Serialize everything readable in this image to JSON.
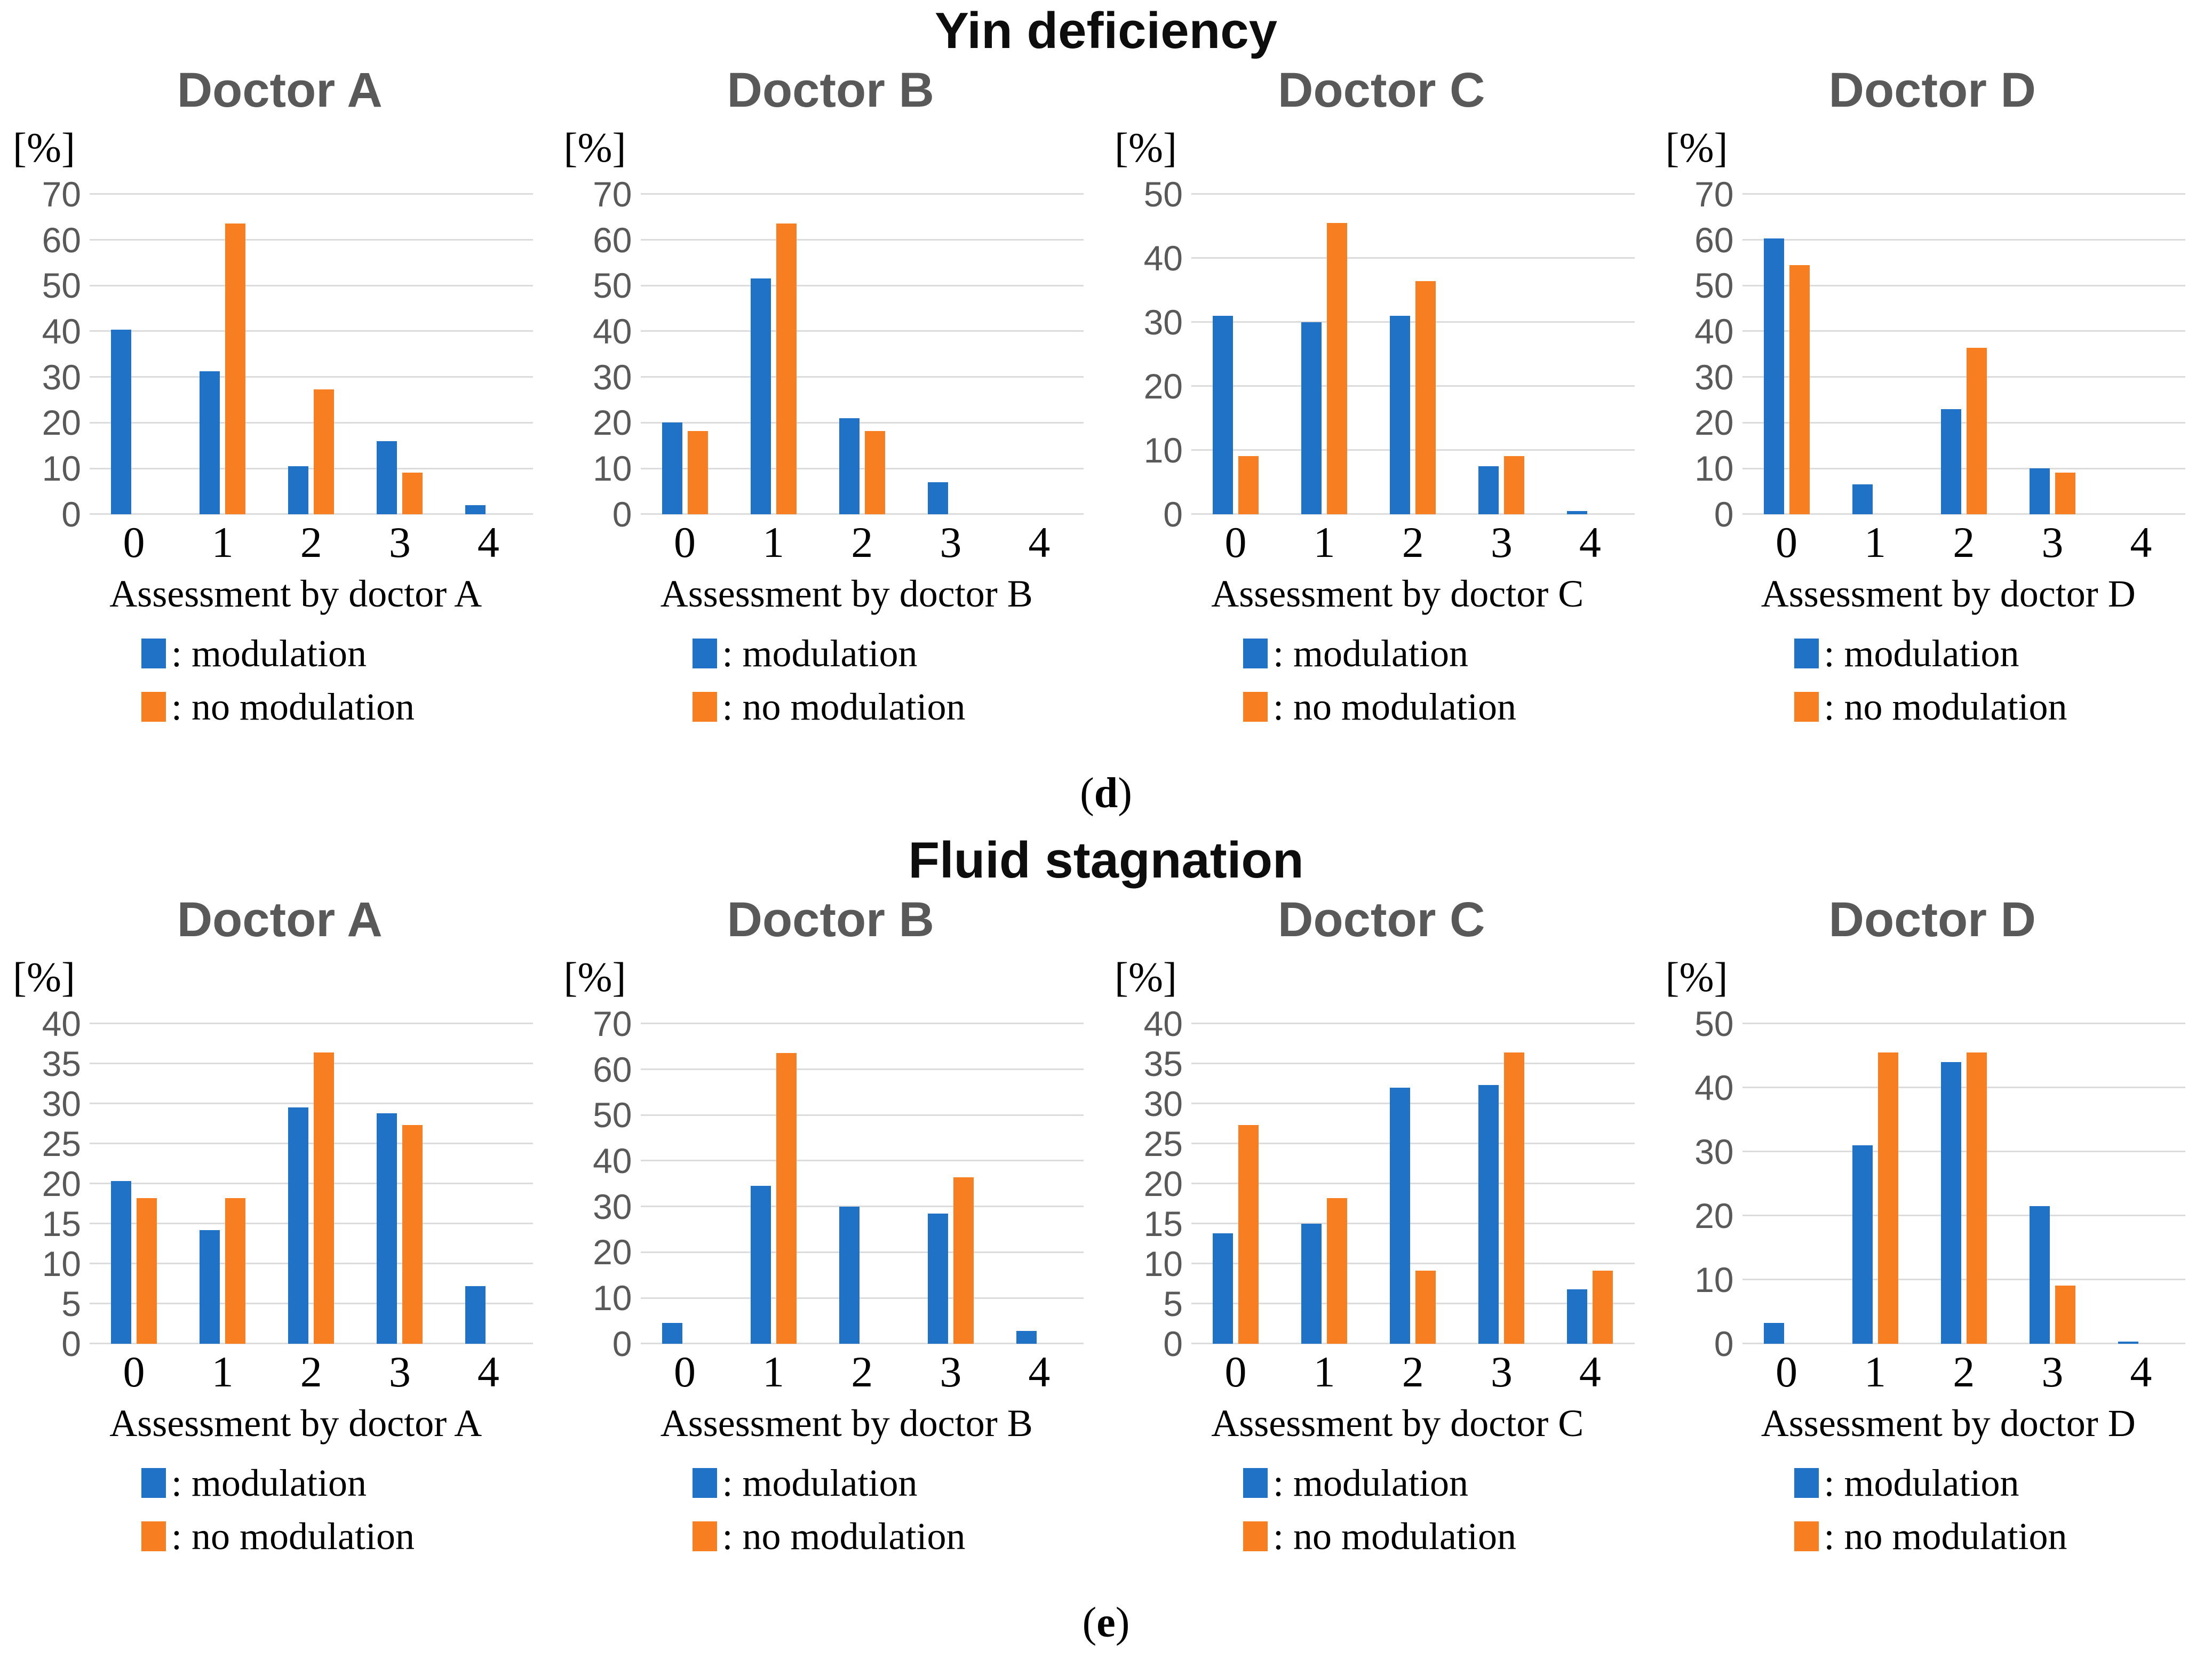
{
  "figure": {
    "percent_label": "[%]",
    "colors": {
      "modulation": "#1F72C6",
      "no_modulation": "#F87E22",
      "gridline": "#DCDCDC",
      "tick_label": "#595959",
      "panel_title": "#595959"
    },
    "legend": [
      {
        "key": "modulation",
        "label": ": modulation"
      },
      {
        "key": "no_modulation",
        "label": ": no modulation"
      }
    ],
    "sections": [
      {
        "id": "d",
        "title": "Yin deficiency",
        "caption": {
          "open": "(",
          "letter": "d",
          "close": ")"
        }
      },
      {
        "id": "e",
        "title": "Fluid stagnation",
        "caption": {
          "open": "(",
          "letter": "e",
          "close": ")"
        }
      }
    ]
  },
  "chart_data": [
    {
      "type": "bar",
      "section_index": 0,
      "section": "Yin deficiency",
      "title": "Doctor A",
      "xlabel": "Assessment by doctor A",
      "ylabel": "[%]",
      "categories": [
        "0",
        "1",
        "2",
        "3",
        "4"
      ],
      "ylim": [
        0,
        70
      ],
      "ytick_step": 10,
      "series": [
        {
          "name": "modulation",
          "values": [
            40.3,
            31.2,
            10.5,
            16.0,
            2.0
          ]
        },
        {
          "name": "no modulation",
          "values": [
            0,
            63.6,
            27.3,
            9.1,
            0
          ]
        }
      ]
    },
    {
      "type": "bar",
      "section_index": 0,
      "section": "Yin deficiency",
      "title": "Doctor B",
      "xlabel": "Assessment by doctor B",
      "ylabel": "[%]",
      "categories": [
        "0",
        "1",
        "2",
        "3",
        "4"
      ],
      "ylim": [
        0,
        70
      ],
      "ytick_step": 10,
      "series": [
        {
          "name": "modulation",
          "values": [
            20.0,
            51.5,
            21.0,
            7.0,
            0
          ]
        },
        {
          "name": "no modulation",
          "values": [
            18.2,
            63.6,
            18.2,
            0,
            0
          ]
        }
      ]
    },
    {
      "type": "bar",
      "section_index": 0,
      "section": "Yin deficiency",
      "title": "Doctor C",
      "xlabel": "Assessment by doctor C",
      "ylabel": "[%]",
      "categories": [
        "0",
        "1",
        "2",
        "3",
        "4"
      ],
      "ylim": [
        0,
        50
      ],
      "ytick_step": 10,
      "series": [
        {
          "name": "modulation",
          "values": [
            31.0,
            30.0,
            31.0,
            7.5,
            0.5
          ]
        },
        {
          "name": "no modulation",
          "values": [
            9.1,
            45.5,
            36.4,
            9.1,
            0
          ]
        }
      ]
    },
    {
      "type": "bar",
      "section_index": 0,
      "section": "Yin deficiency",
      "title": "Doctor D",
      "xlabel": "Assessment by doctor D",
      "ylabel": "[%]",
      "categories": [
        "0",
        "1",
        "2",
        "3",
        "4"
      ],
      "ylim": [
        0,
        70
      ],
      "ytick_step": 10,
      "series": [
        {
          "name": "modulation",
          "values": [
            60.3,
            6.5,
            23.0,
            10.0,
            0
          ]
        },
        {
          "name": "no modulation",
          "values": [
            54.5,
            0,
            36.4,
            9.1,
            0
          ]
        }
      ]
    },
    {
      "type": "bar",
      "section_index": 1,
      "section": "Fluid stagnation",
      "title": "Doctor A",
      "xlabel": "Assessment by doctor A",
      "ylabel": "[%]",
      "categories": [
        "0",
        "1",
        "2",
        "3",
        "4"
      ],
      "ylim": [
        0,
        40
      ],
      "ytick_step": 5,
      "series": [
        {
          "name": "modulation",
          "values": [
            20.3,
            14.2,
            29.5,
            28.8,
            7.2
          ]
        },
        {
          "name": "no modulation",
          "values": [
            18.2,
            18.2,
            36.4,
            27.3,
            0
          ]
        }
      ]
    },
    {
      "type": "bar",
      "section_index": 1,
      "section": "Fluid stagnation",
      "title": "Doctor B",
      "xlabel": "Assessment by doctor B",
      "ylabel": "[%]",
      "categories": [
        "0",
        "1",
        "2",
        "3",
        "4"
      ],
      "ylim": [
        0,
        70
      ],
      "ytick_step": 10,
      "series": [
        {
          "name": "modulation",
          "values": [
            4.5,
            34.5,
            30.0,
            28.5,
            2.8
          ]
        },
        {
          "name": "no modulation",
          "values": [
            0,
            63.6,
            0,
            36.4,
            0
          ]
        }
      ]
    },
    {
      "type": "bar",
      "section_index": 1,
      "section": "Fluid stagnation",
      "title": "Doctor C",
      "xlabel": "Assessment by doctor C",
      "ylabel": "[%]",
      "categories": [
        "0",
        "1",
        "2",
        "3",
        "4"
      ],
      "ylim": [
        0,
        40
      ],
      "ytick_step": 5,
      "series": [
        {
          "name": "modulation",
          "values": [
            13.8,
            15.0,
            32.0,
            32.3,
            6.8
          ]
        },
        {
          "name": "no modulation",
          "values": [
            27.3,
            18.2,
            9.1,
            36.4,
            9.1
          ]
        }
      ]
    },
    {
      "type": "bar",
      "section_index": 1,
      "section": "Fluid stagnation",
      "title": "Doctor D",
      "xlabel": "Assessment by doctor D",
      "ylabel": "[%]",
      "categories": [
        "0",
        "1",
        "2",
        "3",
        "4"
      ],
      "ylim": [
        0,
        50
      ],
      "ytick_step": 10,
      "series": [
        {
          "name": "modulation",
          "values": [
            3.2,
            31.0,
            44.0,
            21.5,
            0.3
          ]
        },
        {
          "name": "no modulation",
          "values": [
            0,
            45.5,
            45.5,
            9.1,
            0
          ]
        }
      ]
    }
  ]
}
